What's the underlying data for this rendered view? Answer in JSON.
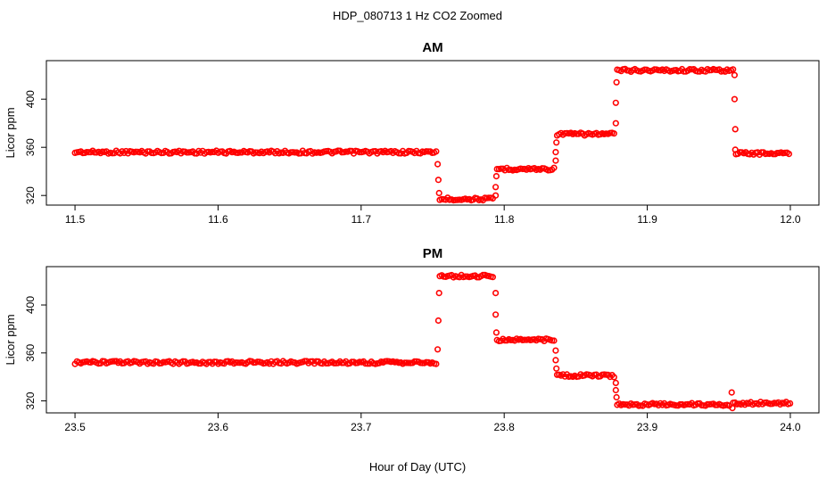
{
  "figure": {
    "title": "HDP_080713  1 Hz CO2 Zoomed",
    "xlabel": "Hour of Day (UTC)"
  },
  "chart_data": [
    {
      "type": "scatter",
      "title": "AM",
      "ylabel": "Licor ppm",
      "xlim": [
        11.48,
        12.02
      ],
      "ylim": [
        312,
        432
      ],
      "xticks": [
        11.5,
        11.6,
        11.7,
        11.8,
        11.9,
        12.0
      ],
      "xtick_labels": [
        "11.5",
        "11.6",
        "11.7",
        "11.8",
        "11.9",
        "12.0"
      ],
      "yticks": [
        320,
        360,
        400
      ],
      "ytick_labels": [
        "320",
        "360",
        "400"
      ],
      "marker": "open-circle",
      "color": "#ff0000",
      "segments": [
        {
          "x_start": 11.5,
          "x_end": 11.753,
          "y": 356
        },
        {
          "x_start": 11.755,
          "x_end": 11.793,
          "y": 317
        },
        {
          "x_start": 11.795,
          "x_end": 11.835,
          "y": 342
        },
        {
          "x_start": 11.837,
          "x_end": 11.877,
          "y": 371
        },
        {
          "x_start": 11.879,
          "x_end": 11.96,
          "y": 424
        },
        {
          "x_start": 11.962,
          "x_end": 12.0,
          "y": 355
        }
      ],
      "transition_points": [
        [
          11.7535,
          346
        ],
        [
          11.754,
          333
        ],
        [
          11.7545,
          322
        ],
        [
          11.794,
          320
        ],
        [
          11.794,
          327
        ],
        [
          11.7945,
          336
        ],
        [
          11.836,
          349
        ],
        [
          11.836,
          356
        ],
        [
          11.8365,
          364
        ],
        [
          11.878,
          380
        ],
        [
          11.878,
          397
        ],
        [
          11.8785,
          414
        ],
        [
          11.961,
          420
        ],
        [
          11.961,
          400
        ],
        [
          11.9615,
          375
        ],
        [
          11.9615,
          358
        ]
      ]
    },
    {
      "type": "scatter",
      "title": "PM",
      "ylabel": "Licor ppm",
      "xlim": [
        23.48,
        24.02
      ],
      "ylim": [
        310,
        432
      ],
      "xticks": [
        23.5,
        23.6,
        23.7,
        23.8,
        23.9,
        24.0
      ],
      "xtick_labels": [
        "23.5",
        "23.6",
        "23.7",
        "23.8",
        "23.9",
        "24.0"
      ],
      "yticks": [
        320,
        360,
        400
      ],
      "ytick_labels": [
        "320",
        "360",
        "400"
      ],
      "marker": "open-circle",
      "color": "#ff0000",
      "segments": [
        {
          "x_start": 23.5,
          "x_end": 23.753,
          "y": 352
        },
        {
          "x_start": 23.755,
          "x_end": 23.793,
          "y": 424
        },
        {
          "x_start": 23.795,
          "x_end": 23.835,
          "y": 371
        },
        {
          "x_start": 23.837,
          "x_end": 23.877,
          "y": 341
        },
        {
          "x_start": 23.879,
          "x_end": 23.958,
          "y": 317
        },
        {
          "x_start": 23.96,
          "x_end": 24.0,
          "y": 318
        }
      ],
      "transition_points": [
        [
          23.7535,
          363
        ],
        [
          23.754,
          387
        ],
        [
          23.7545,
          410
        ],
        [
          23.794,
          410
        ],
        [
          23.794,
          392
        ],
        [
          23.7945,
          377
        ],
        [
          23.836,
          362
        ],
        [
          23.836,
          354
        ],
        [
          23.8365,
          347
        ],
        [
          23.878,
          335
        ],
        [
          23.878,
          329
        ],
        [
          23.8785,
          323
        ],
        [
          23.959,
          327
        ],
        [
          23.9595,
          314
        ]
      ]
    }
  ]
}
